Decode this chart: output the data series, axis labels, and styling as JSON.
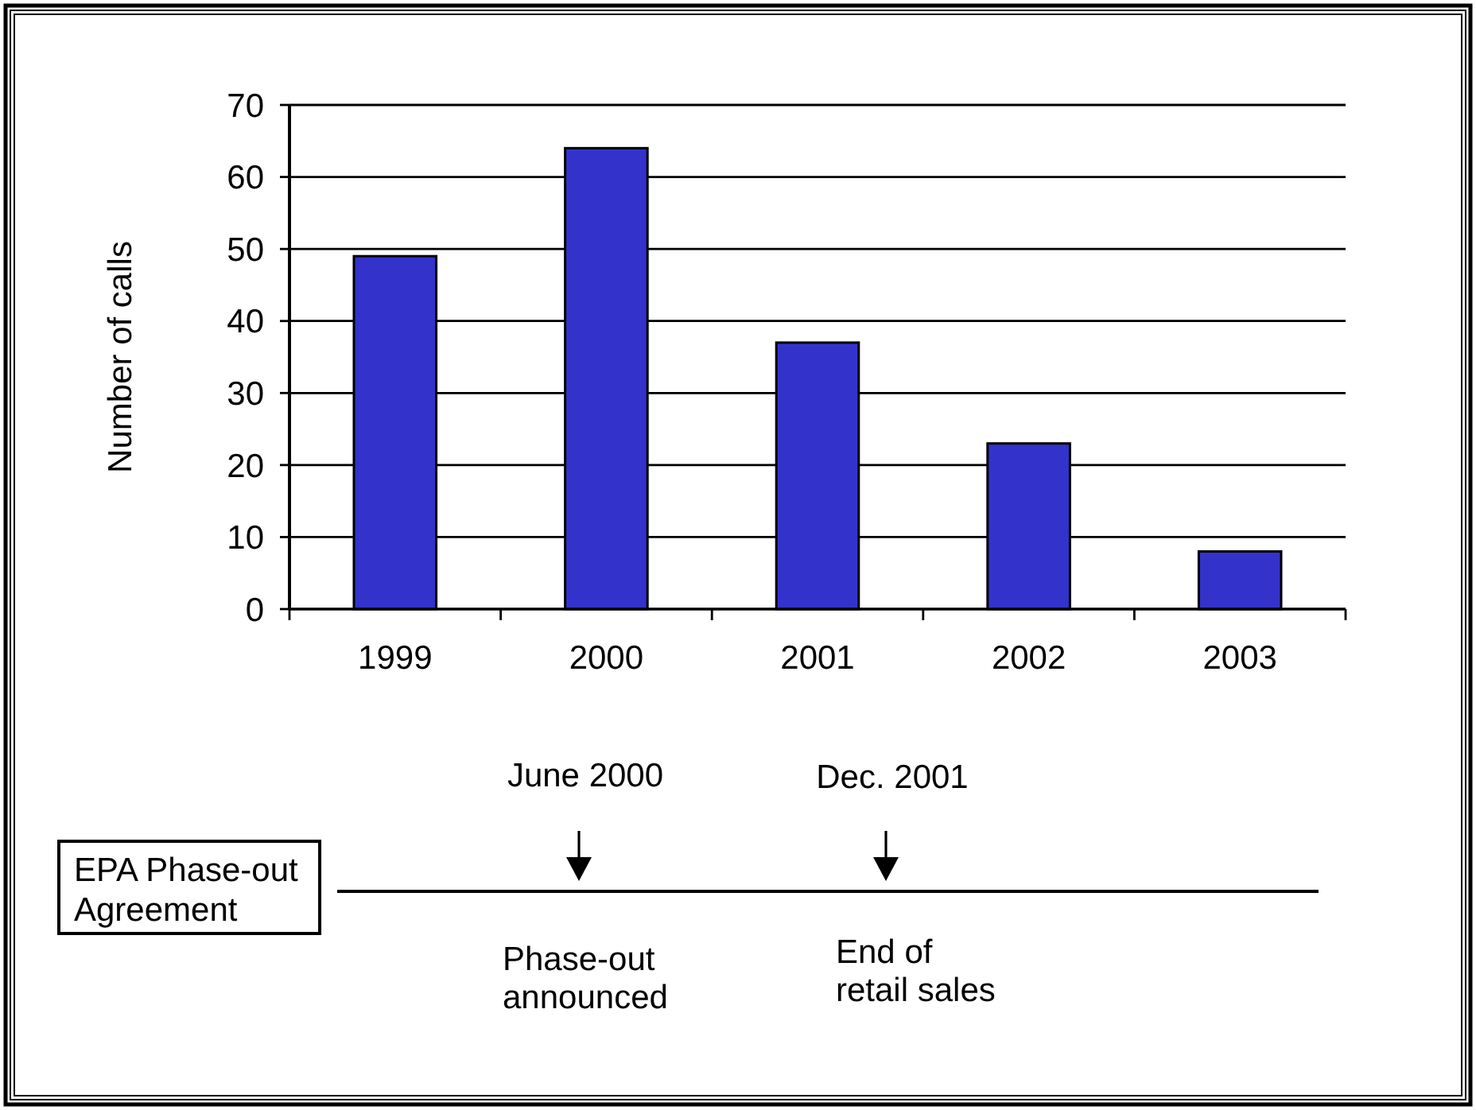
{
  "chart_data": {
    "type": "bar",
    "ylabel": "Number of calls",
    "categories": [
      "1999",
      "2000",
      "2001",
      "2002",
      "2003"
    ],
    "values": [
      49,
      64,
      37,
      23,
      8
    ],
    "color": "#3333cc",
    "ylim": [
      0,
      70
    ],
    "yticks": [
      0,
      10,
      20,
      30,
      40,
      50,
      60,
      70
    ],
    "grid": "y",
    "annotations": [
      "EPA Phase-out Agreement",
      "June 2000",
      "Phase-out announced",
      "Dec. 2001",
      "End of retail sales"
    ]
  }
}
